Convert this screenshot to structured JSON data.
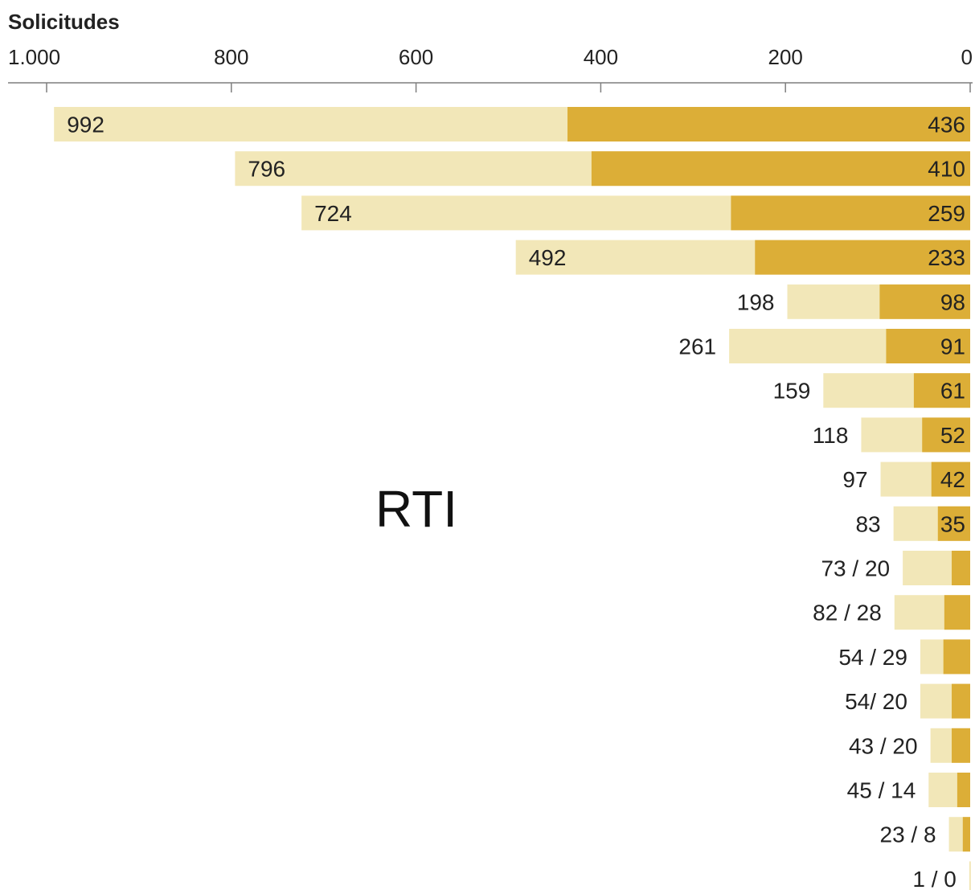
{
  "chart_data": {
    "type": "bar",
    "orientation": "horizontal",
    "ylabel": "Solicitudes",
    "xlim": [
      1000,
      0
    ],
    "ticks": [
      1000,
      800,
      600,
      400,
      200,
      0
    ],
    "tick_labels": [
      "1.000",
      "800",
      "600",
      "400",
      "200",
      "0"
    ],
    "annotation": "RTI",
    "colors": {
      "total": "#f2e7b8",
      "part": "#dcae37",
      "axis": "#7f7f7f"
    },
    "rows": [
      {
        "total": 992,
        "part": 436,
        "total_label": "992",
        "part_label": "436"
      },
      {
        "total": 796,
        "part": 410,
        "total_label": "796",
        "part_label": "410"
      },
      {
        "total": 724,
        "part": 259,
        "total_label": "724",
        "part_label": "259"
      },
      {
        "total": 492,
        "part": 233,
        "total_label": "492",
        "part_label": "233"
      },
      {
        "total": 198,
        "part": 98,
        "total_label": "198",
        "part_label": "98"
      },
      {
        "total": 261,
        "part": 91,
        "total_label": "261",
        "part_label": "91"
      },
      {
        "total": 159,
        "part": 61,
        "total_label": "159",
        "part_label": "61"
      },
      {
        "total": 118,
        "part": 52,
        "total_label": "118",
        "part_label": "52"
      },
      {
        "total": 97,
        "part": 42,
        "total_label": "97",
        "part_label": "42"
      },
      {
        "total": 83,
        "part": 35,
        "total_label": "83",
        "part_label": "35"
      },
      {
        "total": 73,
        "part": 20,
        "total_label": "73 / 20",
        "part_label": ""
      },
      {
        "total": 82,
        "part": 28,
        "total_label": "82 / 28",
        "part_label": ""
      },
      {
        "total": 54,
        "part": 29,
        "total_label": "54 / 29",
        "part_label": ""
      },
      {
        "total": 54,
        "part": 20,
        "total_label": "54/ 20",
        "part_label": ""
      },
      {
        "total": 43,
        "part": 20,
        "total_label": "43 / 20",
        "part_label": ""
      },
      {
        "total": 45,
        "part": 14,
        "total_label": "45 / 14",
        "part_label": ""
      },
      {
        "total": 23,
        "part": 8,
        "total_label": "23 / 8",
        "part_label": ""
      },
      {
        "total": 1,
        "part": 0,
        "total_label": "1 / 0",
        "part_label": ""
      }
    ]
  }
}
